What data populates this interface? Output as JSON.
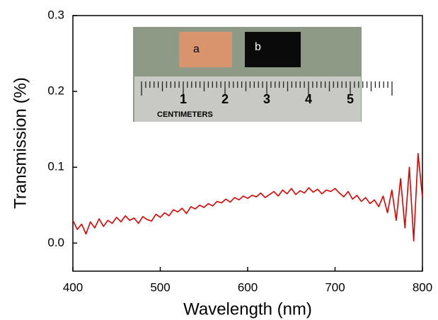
{
  "chart_data": {
    "type": "line",
    "x_label": "Wavelength (nm)",
    "y_label": "Transmission (%)",
    "x": [
      400,
      405,
      410,
      415,
      420,
      425,
      430,
      435,
      440,
      445,
      450,
      455,
      460,
      465,
      470,
      475,
      480,
      485,
      490,
      495,
      500,
      505,
      510,
      515,
      520,
      525,
      530,
      535,
      540,
      545,
      550,
      555,
      560,
      565,
      570,
      575,
      580,
      585,
      590,
      595,
      600,
      605,
      610,
      615,
      620,
      625,
      630,
      635,
      640,
      645,
      650,
      655,
      660,
      665,
      670,
      675,
      680,
      685,
      690,
      695,
      700,
      705,
      710,
      715,
      720,
      725,
      730,
      735,
      740,
      745,
      750,
      755,
      760,
      765,
      770,
      775,
      780,
      785,
      790,
      795,
      800
    ],
    "series": [
      {
        "color": "#e00000",
        "values": [
          0.03,
          0.018,
          0.025,
          0.012,
          0.028,
          0.02,
          0.032,
          0.022,
          0.03,
          0.026,
          0.034,
          0.028,
          0.036,
          0.03,
          0.033,
          0.026,
          0.035,
          0.031,
          0.029,
          0.038,
          0.034,
          0.04,
          0.036,
          0.044,
          0.041,
          0.046,
          0.039,
          0.048,
          0.045,
          0.05,
          0.047,
          0.052,
          0.049,
          0.055,
          0.053,
          0.058,
          0.054,
          0.06,
          0.057,
          0.062,
          0.059,
          0.063,
          0.061,
          0.066,
          0.06,
          0.064,
          0.068,
          0.062,
          0.07,
          0.065,
          0.072,
          0.064,
          0.069,
          0.066,
          0.073,
          0.067,
          0.071,
          0.065,
          0.07,
          0.068,
          0.072,
          0.066,
          0.061,
          0.068,
          0.058,
          0.063,
          0.055,
          0.06,
          0.052,
          0.057,
          0.048,
          0.062,
          0.04,
          0.07,
          0.03,
          0.085,
          0.02,
          0.1,
          0.003,
          0.118,
          0.06
        ]
      }
    ],
    "xlim": [
      400,
      800
    ],
    "xticks": [
      400,
      500,
      600,
      700,
      800
    ],
    "ylim": [
      -0.037,
      0.3
    ],
    "yticks": [
      {
        "value": 0,
        "label": "0.0"
      },
      0.1,
      0.2,
      0.3
    ],
    "inset": {
      "labels": [
        "a",
        "b"
      ],
      "ruler_label": "CENTIMETERS",
      "ruler_numbers": [
        "1",
        "2",
        "3",
        "4",
        "5"
      ]
    }
  }
}
